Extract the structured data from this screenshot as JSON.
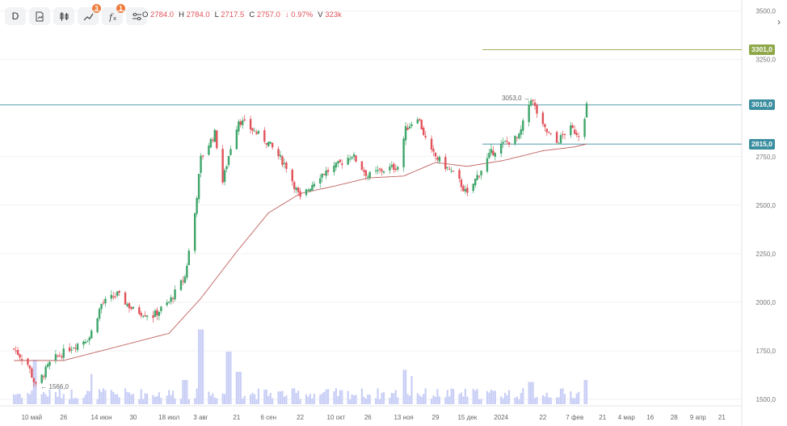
{
  "toolbar": {
    "interval": "D",
    "alerts_count": "3",
    "indicators_count": "1"
  },
  "ohlc": {
    "open_label": "O",
    "open": "2784.0",
    "high_label": "H",
    "high": "2784.0",
    "low_label": "L",
    "low": "2717.5",
    "close_label": "C",
    "close": "2757.0",
    "change": "↓ 0.97%",
    "volume_label": "V",
    "volume": "323k"
  },
  "price_labels": {
    "line1": "3301,0",
    "line2": "3016,0",
    "line3": "2815,0"
  },
  "annotations": {
    "high": "3053,0",
    "low": "1566,0"
  },
  "colors": {
    "up": "#3ea56a",
    "down": "#e2525a",
    "ma": "#c0605f",
    "volume": "#c9cff6",
    "level1": "#8fa84a",
    "level2": "#3b8ea0",
    "level3": "#3b8ea0"
  },
  "chart_data": {
    "type": "candlestick",
    "y_ticks": [
      "3500,0",
      "3250,0",
      "2750,0",
      "2500,0",
      "2250,0",
      "2000,0",
      "1750,0",
      "1500,0"
    ],
    "ylim": [
      1475,
      3540
    ],
    "x_ticks": [
      "10 май",
      "26",
      "14 июн",
      "30",
      "18 июл",
      "3 авг",
      "21",
      "6 сен",
      "22",
      "10 окт",
      "26",
      "13 ноя",
      "29",
      "15 дек",
      "2024",
      "22",
      "7 фев",
      "21",
      "4 мар",
      "16",
      "28",
      "9 апр",
      "21"
    ],
    "horizontal_levels": [
      3301.0,
      3016.0,
      2815.0
    ],
    "anchors": [
      [
        "2023-05-01",
        1760
      ],
      [
        "2023-05-08",
        1680
      ],
      [
        "2023-05-12",
        1566
      ],
      [
        "2023-05-20",
        1700
      ],
      [
        "2023-05-30",
        1770
      ],
      [
        "2023-06-08",
        1820
      ],
      [
        "2023-06-14",
        1990
      ],
      [
        "2023-06-22",
        2040
      ],
      [
        "2023-06-30",
        1960
      ],
      [
        "2023-07-10",
        1930
      ],
      [
        "2023-07-18",
        2000
      ],
      [
        "2023-07-26",
        2130
      ],
      [
        "2023-07-31",
        2460
      ],
      [
        "2023-08-03",
        2740
      ],
      [
        "2023-08-10",
        2870
      ],
      [
        "2023-08-14",
        2620
      ],
      [
        "2023-08-18",
        2800
      ],
      [
        "2023-08-22",
        2940
      ],
      [
        "2023-08-30",
        2880
      ],
      [
        "2023-09-06",
        2820
      ],
      [
        "2023-09-15",
        2700
      ],
      [
        "2023-09-22",
        2530
      ],
      [
        "2023-10-01",
        2650
      ],
      [
        "2023-10-10",
        2700
      ],
      [
        "2023-10-18",
        2760
      ],
      [
        "2023-10-26",
        2650
      ],
      [
        "2023-11-02",
        2680
      ],
      [
        "2023-11-10",
        2700
      ],
      [
        "2023-11-14",
        2890
      ],
      [
        "2023-11-20",
        2960
      ],
      [
        "2023-11-26",
        2780
      ],
      [
        "2023-12-04",
        2700
      ],
      [
        "2023-12-10",
        2640
      ],
      [
        "2023-12-15",
        2550
      ],
      [
        "2023-12-20",
        2650
      ],
      [
        "2023-12-27",
        2770
      ],
      [
        "2024-01-03",
        2820
      ],
      [
        "2024-01-10",
        2850
      ],
      [
        "2024-01-16",
        3053
      ],
      [
        "2024-01-22",
        2900
      ],
      [
        "2024-01-29",
        2820
      ],
      [
        "2024-02-04",
        2900
      ],
      [
        "2024-02-10",
        2860
      ],
      [
        "2024-02-13",
        3016
      ]
    ],
    "ma_anchors": [
      [
        "2023-05-01",
        1700
      ],
      [
        "2023-05-26",
        1700
      ],
      [
        "2023-06-14",
        1750
      ],
      [
        "2023-07-18",
        1840
      ],
      [
        "2023-08-03",
        2020
      ],
      [
        "2023-08-21",
        2260
      ],
      [
        "2023-09-06",
        2460
      ],
      [
        "2023-09-22",
        2560
      ],
      [
        "2023-10-10",
        2600
      ],
      [
        "2023-10-26",
        2640
      ],
      [
        "2023-11-13",
        2650
      ],
      [
        "2023-11-29",
        2720
      ],
      [
        "2023-12-15",
        2700
      ],
      [
        "2024-01-02",
        2730
      ],
      [
        "2024-01-22",
        2780
      ],
      [
        "2024-02-07",
        2800
      ],
      [
        "2024-02-13",
        2815
      ]
    ],
    "volume_spikes": [
      [
        "2023-05-12",
        110
      ],
      [
        "2023-06-10",
        75
      ],
      [
        "2023-07-26",
        60
      ],
      [
        "2023-08-03",
        185
      ],
      [
        "2023-08-17",
        130
      ],
      [
        "2023-08-22",
        80
      ],
      [
        "2023-11-13",
        85
      ],
      [
        "2023-11-18",
        70
      ],
      [
        "2024-01-16",
        55
      ],
      [
        "2024-02-12",
        60
      ]
    ]
  }
}
